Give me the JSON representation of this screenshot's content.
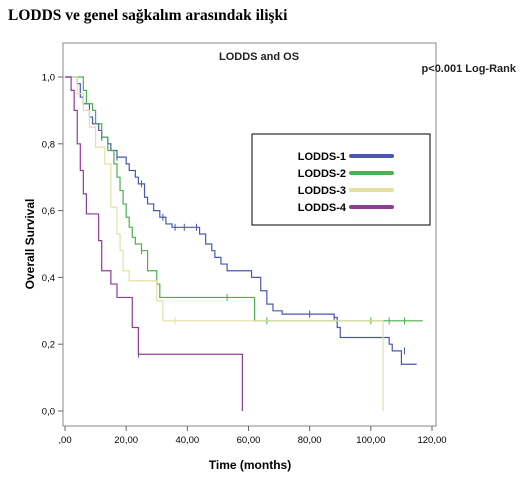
{
  "page": {
    "title": "LODDS ve genel sağkalım arasındak ilişki"
  },
  "chart_data": {
    "type": "line",
    "title": "LODDS and OS",
    "annotation": "p<0.001 Log-Rank",
    "xlabel": "Time (months)",
    "ylabel": "Overall Survival",
    "xlim": [
      0,
      120
    ],
    "ylim": [
      0,
      1
    ],
    "x_ticks": [
      0,
      20,
      40,
      60,
      80,
      100,
      120
    ],
    "x_tick_labels": [
      ",00",
      "20,00",
      "40,00",
      "60,00",
      "80,00",
      "100,00",
      "120,00"
    ],
    "y_ticks": [
      0,
      0.2,
      0.4,
      0.6,
      0.8,
      1.0
    ],
    "y_tick_labels": [
      "0,0",
      "0,2",
      "0,4",
      "0,6",
      "0,8",
      "1,0"
    ],
    "grid": false,
    "legend_position": "top-right",
    "series": [
      {
        "name": "LODDS-1",
        "color": "#4a56b0",
        "steps": [
          [
            0,
            1.0
          ],
          [
            4,
            0.98
          ],
          [
            5,
            0.94
          ],
          [
            6,
            0.92
          ],
          [
            8,
            0.88
          ],
          [
            9,
            0.86
          ],
          [
            11,
            0.84
          ],
          [
            12,
            0.82
          ],
          [
            14,
            0.8
          ],
          [
            15,
            0.78
          ],
          [
            17,
            0.76
          ],
          [
            20,
            0.74
          ],
          [
            21,
            0.72
          ],
          [
            23,
            0.7
          ],
          [
            24,
            0.68
          ],
          [
            26,
            0.64
          ],
          [
            27,
            0.62
          ],
          [
            29,
            0.6
          ],
          [
            31,
            0.58
          ],
          [
            33,
            0.56
          ],
          [
            35,
            0.55
          ],
          [
            44,
            0.53
          ],
          [
            46,
            0.5
          ],
          [
            48,
            0.48
          ],
          [
            49,
            0.46
          ],
          [
            51,
            0.44
          ],
          [
            53,
            0.42
          ],
          [
            61,
            0.4
          ],
          [
            64,
            0.36
          ],
          [
            66,
            0.32
          ],
          [
            68,
            0.3
          ],
          [
            71,
            0.29
          ],
          [
            80,
            0.29
          ],
          [
            88,
            0.28
          ],
          [
            89,
            0.25
          ],
          [
            90,
            0.22
          ],
          [
            106,
            0.2
          ],
          [
            107,
            0.18
          ],
          [
            110,
            0.14
          ],
          [
            115,
            0.14
          ]
        ],
        "censored": [
          [
            12,
            0.82
          ],
          [
            17,
            0.76
          ],
          [
            25,
            0.68
          ],
          [
            32,
            0.58
          ],
          [
            36,
            0.55
          ],
          [
            39,
            0.55
          ],
          [
            43,
            0.55
          ],
          [
            80,
            0.29
          ],
          [
            88,
            0.28
          ],
          [
            111,
            0.18
          ]
        ]
      },
      {
        "name": "LODDS-2",
        "color": "#4caf50",
        "steps": [
          [
            0,
            1.0
          ],
          [
            6,
            0.96
          ],
          [
            7,
            0.92
          ],
          [
            9,
            0.9
          ],
          [
            10,
            0.86
          ],
          [
            12,
            0.82
          ],
          [
            14,
            0.78
          ],
          [
            16,
            0.74
          ],
          [
            17,
            0.7
          ],
          [
            18,
            0.66
          ],
          [
            19,
            0.62
          ],
          [
            20,
            0.58
          ],
          [
            21,
            0.55
          ],
          [
            22,
            0.52
          ],
          [
            23,
            0.5
          ],
          [
            25,
            0.48
          ],
          [
            27,
            0.42
          ],
          [
            30,
            0.38
          ],
          [
            31,
            0.34
          ],
          [
            62,
            0.27
          ],
          [
            117,
            0.27
          ]
        ],
        "censored": [
          [
            25,
            0.48
          ],
          [
            53,
            0.34
          ],
          [
            66,
            0.27
          ],
          [
            100,
            0.27
          ],
          [
            106,
            0.27
          ],
          [
            111,
            0.27
          ]
        ]
      },
      {
        "name": "LODDS-3",
        "color": "#e6dfa3",
        "steps": [
          [
            0,
            1.0
          ],
          [
            4,
            0.95
          ],
          [
            6,
            0.9
          ],
          [
            8,
            0.85
          ],
          [
            10,
            0.79
          ],
          [
            13,
            0.74
          ],
          [
            15,
            0.61
          ],
          [
            17,
            0.53
          ],
          [
            18,
            0.48
          ],
          [
            19,
            0.42
          ],
          [
            21,
            0.39
          ],
          [
            30,
            0.33
          ],
          [
            32,
            0.27
          ],
          [
            104,
            0.27
          ],
          [
            104,
            0.0
          ]
        ],
        "censored": [
          [
            36,
            0.27
          ]
        ]
      },
      {
        "name": "LODDS-4",
        "color": "#8e3c96",
        "steps": [
          [
            0,
            1.0
          ],
          [
            2,
            0.96
          ],
          [
            3,
            0.9
          ],
          [
            4,
            0.8
          ],
          [
            5,
            0.72
          ],
          [
            6,
            0.65
          ],
          [
            7,
            0.59
          ],
          [
            11,
            0.51
          ],
          [
            12,
            0.42
          ],
          [
            15,
            0.38
          ],
          [
            17,
            0.34
          ],
          [
            22,
            0.25
          ],
          [
            24,
            0.17
          ],
          [
            58,
            0.17
          ],
          [
            58,
            0.0
          ]
        ],
        "censored": [
          [
            24,
            0.17
          ]
        ]
      }
    ]
  }
}
